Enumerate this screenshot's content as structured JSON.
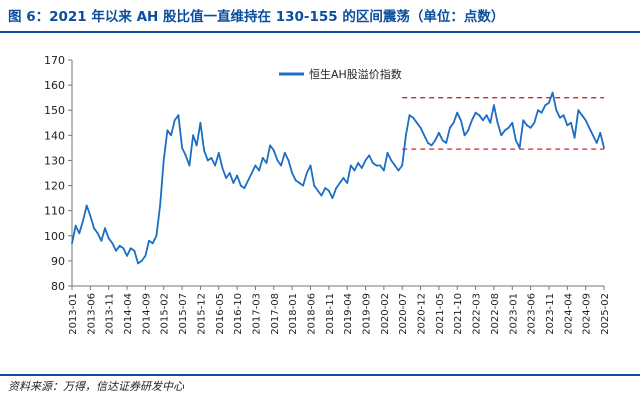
{
  "header": {
    "title": "图 6：2021 年以来 AH 股比值一直维持在 130-155 的区间震荡（单位：点数）"
  },
  "footer": {
    "source": "资料来源：万得，信达证券研发中心"
  },
  "colors": {
    "series": "#1a6fc4",
    "guides": "#e02020",
    "brand": "#0b4f9c"
  },
  "chart_data": {
    "type": "line",
    "legend_position": "top-center",
    "grid": false,
    "ylim": [
      80,
      170
    ],
    "yticks": [
      80,
      90,
      100,
      110,
      120,
      130,
      140,
      150,
      160,
      170
    ],
    "xlim": [
      "2013-01",
      "2025-02"
    ],
    "xticks": [
      "2013-01",
      "2013-06",
      "2013-11",
      "2014-04",
      "2014-09",
      "2015-02",
      "2015-07",
      "2015-12",
      "2016-05",
      "2016-10",
      "2017-03",
      "2017-08",
      "2018-01",
      "2018-06",
      "2018-11",
      "2019-04",
      "2019-09",
      "2020-02",
      "2020-07",
      "2020-12",
      "2021-05",
      "2021-10",
      "2022-03",
      "2022-08",
      "2023-01",
      "2023-06",
      "2023-11",
      "2024-04",
      "2024-09",
      "2025-02"
    ],
    "series": [
      {
        "name": "恒生AH股溢价指数",
        "x": [
          "2013-01",
          "2013-02",
          "2013-03",
          "2013-04",
          "2013-05",
          "2013-06",
          "2013-07",
          "2013-08",
          "2013-09",
          "2013-10",
          "2013-11",
          "2013-12",
          "2014-01",
          "2014-02",
          "2014-03",
          "2014-04",
          "2014-05",
          "2014-06",
          "2014-07",
          "2014-08",
          "2014-09",
          "2014-10",
          "2014-11",
          "2014-12",
          "2015-01",
          "2015-02",
          "2015-03",
          "2015-04",
          "2015-05",
          "2015-06",
          "2015-07",
          "2015-08",
          "2015-09",
          "2015-10",
          "2015-11",
          "2015-12",
          "2016-01",
          "2016-02",
          "2016-03",
          "2016-04",
          "2016-05",
          "2016-06",
          "2016-07",
          "2016-08",
          "2016-09",
          "2016-10",
          "2016-11",
          "2016-12",
          "2017-01",
          "2017-02",
          "2017-03",
          "2017-04",
          "2017-05",
          "2017-06",
          "2017-07",
          "2017-08",
          "2017-09",
          "2017-10",
          "2017-11",
          "2017-12",
          "2018-01",
          "2018-02",
          "2018-03",
          "2018-04",
          "2018-05",
          "2018-06",
          "2018-07",
          "2018-08",
          "2018-09",
          "2018-10",
          "2018-11",
          "2018-12",
          "2019-01",
          "2019-02",
          "2019-03",
          "2019-04",
          "2019-05",
          "2019-06",
          "2019-07",
          "2019-08",
          "2019-09",
          "2019-10",
          "2019-11",
          "2019-12",
          "2020-01",
          "2020-02",
          "2020-03",
          "2020-04",
          "2020-05",
          "2020-06",
          "2020-07",
          "2020-08",
          "2020-09",
          "2020-10",
          "2020-11",
          "2020-12",
          "2021-01",
          "2021-02",
          "2021-03",
          "2021-04",
          "2021-05",
          "2021-06",
          "2021-07",
          "2021-08",
          "2021-09",
          "2021-10",
          "2021-11",
          "2021-12",
          "2022-01",
          "2022-02",
          "2022-03",
          "2022-04",
          "2022-05",
          "2022-06",
          "2022-07",
          "2022-08",
          "2022-09",
          "2022-10",
          "2022-11",
          "2022-12",
          "2023-01",
          "2023-02",
          "2023-03",
          "2023-04",
          "2023-05",
          "2023-06",
          "2023-07",
          "2023-08",
          "2023-09",
          "2023-10",
          "2023-11",
          "2023-12",
          "2024-01",
          "2024-02",
          "2024-03",
          "2024-04",
          "2024-05",
          "2024-06",
          "2024-07",
          "2024-08",
          "2024-09",
          "2024-10",
          "2024-11",
          "2024-12",
          "2025-01",
          "2025-02"
        ],
        "values": [
          97,
          104,
          101,
          106,
          112,
          108,
          103,
          101,
          98,
          103,
          99,
          97,
          94,
          96,
          95,
          92,
          95,
          94,
          89,
          90,
          92,
          98,
          97,
          100,
          112,
          130,
          142,
          140,
          146,
          148,
          135,
          132,
          128,
          140,
          136,
          145,
          134,
          130,
          131,
          128,
          133,
          127,
          123,
          125,
          121,
          124,
          120,
          119,
          122,
          125,
          128,
          126,
          131,
          129,
          136,
          134,
          130,
          128,
          133,
          130,
          125,
          122,
          121,
          120,
          125,
          128,
          120,
          118,
          116,
          119,
          118,
          115,
          119,
          121,
          123,
          121,
          128,
          126,
          129,
          127,
          130,
          132,
          129,
          128,
          128,
          126,
          133,
          130,
          128,
          126,
          128,
          140,
          148,
          147,
          145,
          143,
          140,
          137,
          136,
          138,
          141,
          138,
          137,
          143,
          145,
          149,
          146,
          140,
          142,
          146,
          149,
          148,
          146,
          148,
          145,
          152,
          145,
          140,
          142,
          143,
          145,
          138,
          135,
          146,
          144,
          143,
          145,
          150,
          149,
          152,
          153,
          157,
          150,
          147,
          148,
          144,
          145,
          139,
          150,
          148,
          146,
          143,
          140,
          137,
          141,
          135
        ]
      }
    ],
    "reference_lines": [
      {
        "y": 155,
        "from": "2020-07",
        "to": "2025-02",
        "style": "dashed"
      },
      {
        "y": 134.5,
        "from": "2020-07",
        "to": "2025-02",
        "style": "dashed"
      }
    ]
  }
}
